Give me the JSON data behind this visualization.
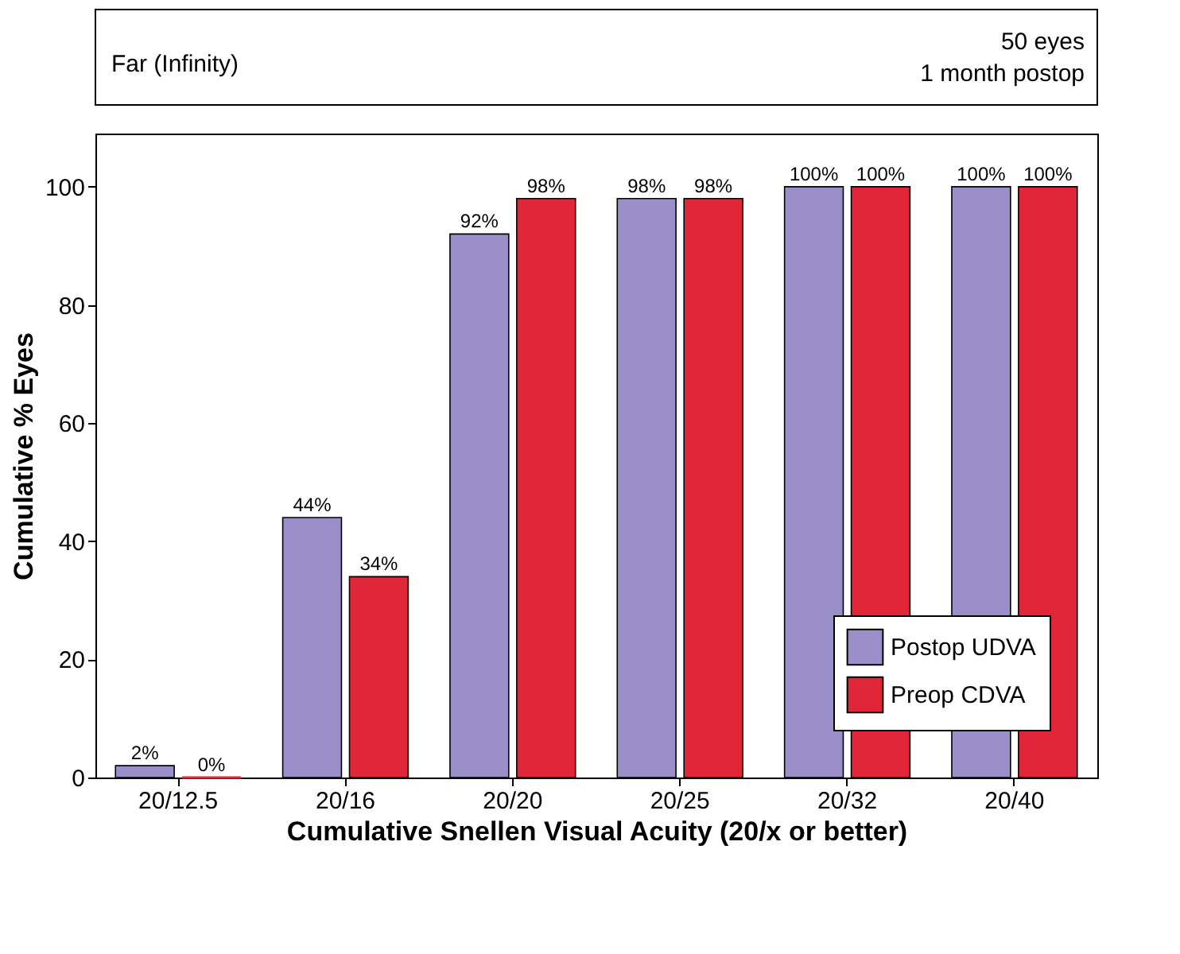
{
  "chart_data": {
    "type": "bar",
    "title": "Far (Infinity)",
    "annotations": [
      "50 eyes",
      "1 month postop"
    ],
    "xlabel": "Cumulative Snellen Visual Acuity (20/x or better)",
    "ylabel": "Cumulative % Eyes",
    "categories": [
      "20/12.5",
      "20/16",
      "20/20",
      "20/25",
      "20/32",
      "20/40"
    ],
    "series": [
      {
        "name": "Postop UDVA",
        "color": "#9b8fc9",
        "values": [
          2,
          44,
          92,
          98,
          100,
          100
        ],
        "value_labels": [
          "2%",
          "44%",
          "92%",
          "98%",
          "100%",
          "100%"
        ]
      },
      {
        "name": "Preop CDVA",
        "color": "#e2263a",
        "values": [
          0,
          34,
          98,
          98,
          100,
          100
        ],
        "value_labels": [
          "0%",
          "34%",
          "98%",
          "98%",
          "100%",
          "100%"
        ]
      }
    ],
    "ylim": [
      0,
      109
    ],
    "yticks": [
      0,
      20,
      40,
      60,
      80,
      100
    ],
    "grid": false,
    "legend": "bottom right"
  }
}
